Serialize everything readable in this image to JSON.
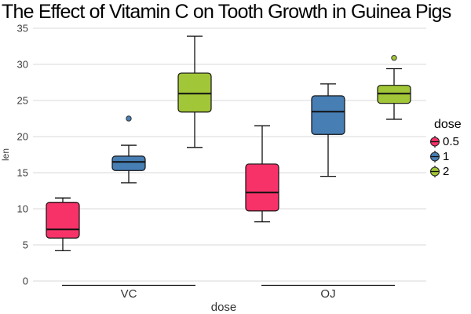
{
  "title": "The Effect of Vitamin C on Tooth Growth in Guinea Pigs",
  "colors": {
    "dose_0_5": "#F73269",
    "dose_1": "#477FB5",
    "dose_2": "#A1C637",
    "grid": "#D9D9D9",
    "stroke": "#111111",
    "tick_text": "#3d3d3d",
    "axis_text": "#333333"
  },
  "legend": {
    "title": "dose",
    "entries": [
      {
        "label": "0.5",
        "color": "#F73269"
      },
      {
        "label": "1",
        "color": "#477FB5"
      },
      {
        "label": "2",
        "color": "#A1C637"
      }
    ]
  },
  "chart_data": {
    "type": "boxplot",
    "title": "The Effect of Vitamin C on Tooth Growth in Guinea Pigs",
    "xlabel": "dose",
    "ylabel": "len",
    "ylim": [
      0,
      35
    ],
    "yticks": [
      0,
      5,
      10,
      15,
      20,
      25,
      30,
      35
    ],
    "grid": "horizontal-major",
    "legend_title": "dose",
    "legend_position": "right",
    "groups": [
      "VC",
      "OJ"
    ],
    "doses": [
      "0.5",
      "1",
      "2"
    ],
    "boxes": [
      {
        "group": "VC",
        "dose": "0.5",
        "color": "#F73269",
        "whisker_low": 4.2,
        "q1": 5.95,
        "median": 7.15,
        "q3": 10.9,
        "whisker_high": 11.5,
        "outliers": []
      },
      {
        "group": "VC",
        "dose": "1",
        "color": "#477FB5",
        "whisker_low": 13.6,
        "q1": 15.3,
        "median": 16.5,
        "q3": 17.3,
        "whisker_high": 18.8,
        "outliers": [
          22.5
        ]
      },
      {
        "group": "VC",
        "dose": "2",
        "color": "#A1C637",
        "whisker_low": 18.5,
        "q1": 23.4,
        "median": 25.95,
        "q3": 28.8,
        "whisker_high": 33.9,
        "outliers": []
      },
      {
        "group": "OJ",
        "dose": "0.5",
        "color": "#F73269",
        "whisker_low": 8.2,
        "q1": 9.7,
        "median": 12.25,
        "q3": 16.2,
        "whisker_high": 21.5,
        "outliers": []
      },
      {
        "group": "OJ",
        "dose": "1",
        "color": "#477FB5",
        "whisker_low": 14.5,
        "q1": 20.3,
        "median": 23.45,
        "q3": 25.65,
        "whisker_high": 27.3,
        "outliers": []
      },
      {
        "group": "OJ",
        "dose": "2",
        "color": "#A1C637",
        "whisker_low": 22.4,
        "q1": 24.6,
        "median": 25.95,
        "q3": 27.1,
        "whisker_high": 29.4,
        "outliers": [
          30.9
        ]
      }
    ]
  }
}
